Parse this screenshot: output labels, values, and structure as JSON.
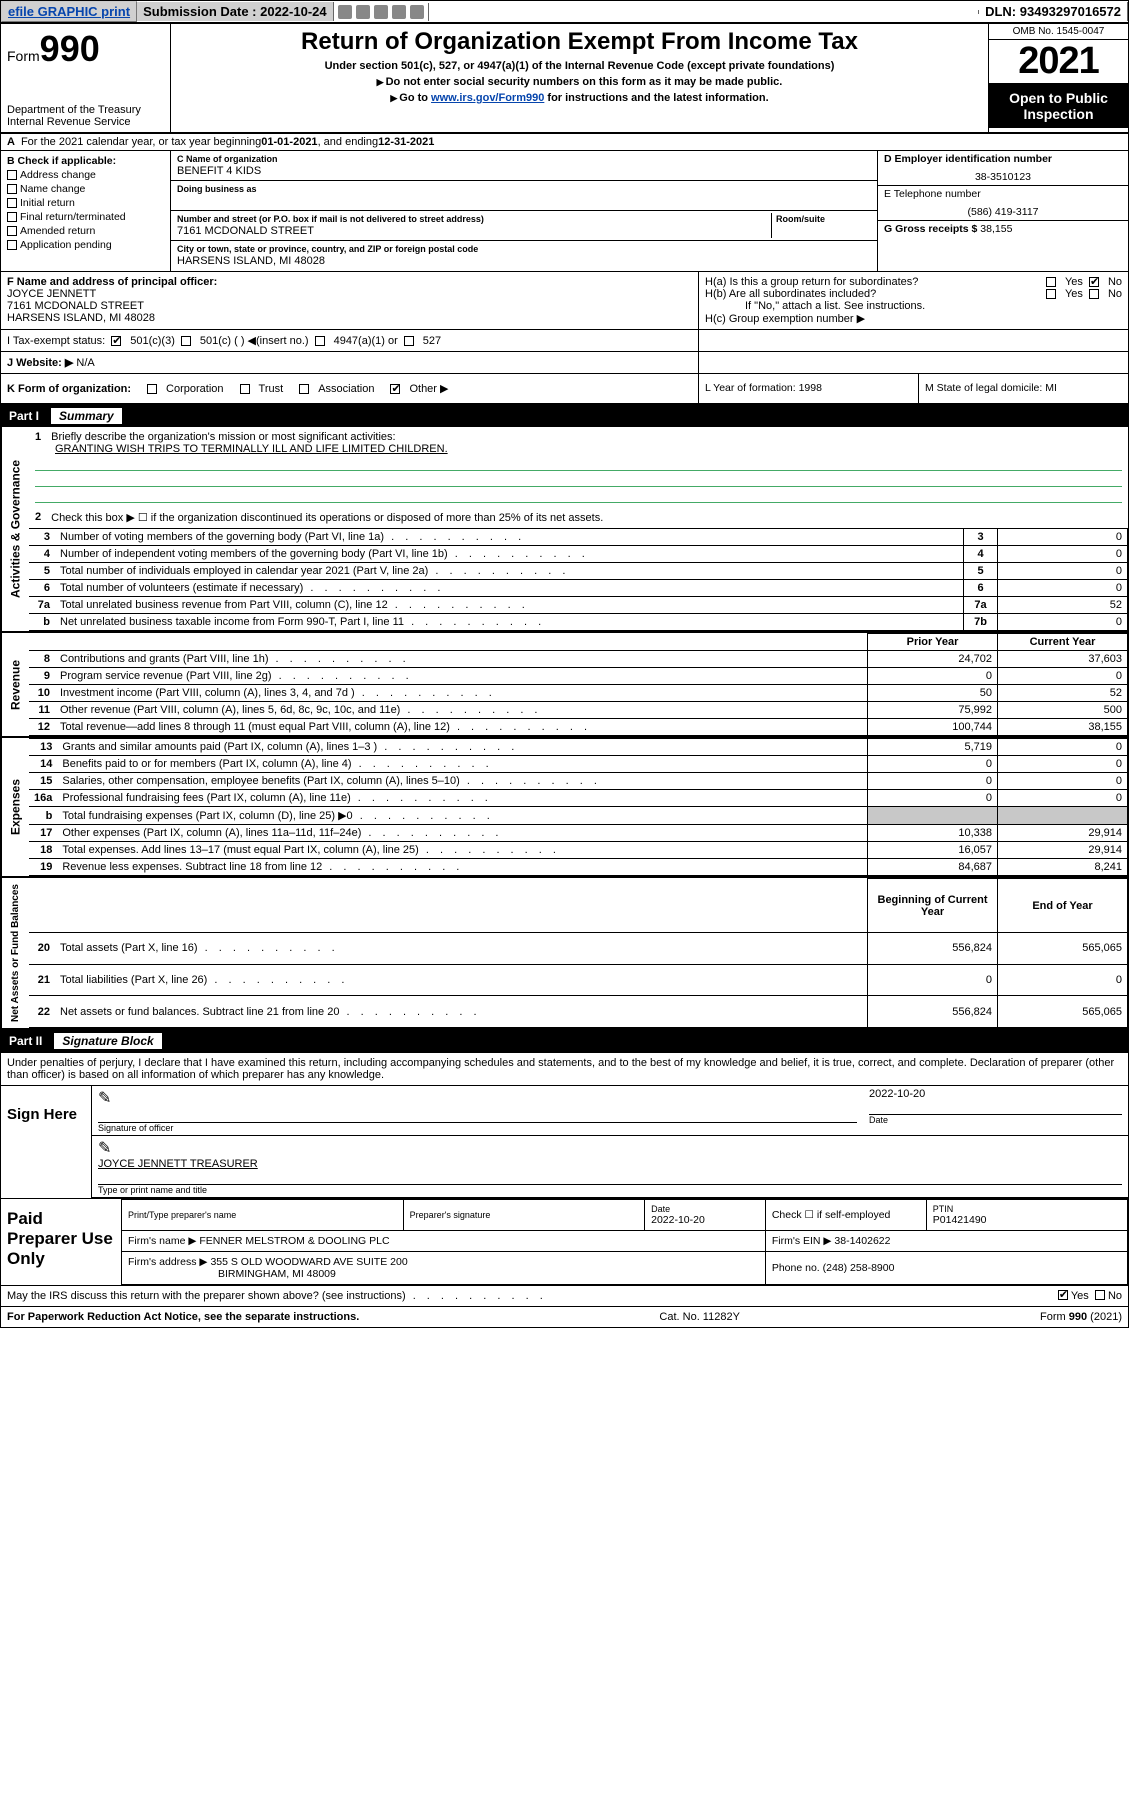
{
  "topbar": {
    "efile": "efile GRAPHIC print",
    "submission_label": "Submission Date : ",
    "submission_date": "2022-10-24",
    "dln_label": "DLN: ",
    "dln": "93493297016572"
  },
  "header": {
    "form_prefix": "Form",
    "form_no": "990",
    "dept": "Department of the Treasury\nInternal Revenue Service",
    "title": "Return of Organization Exempt From Income Tax",
    "subtitle": "Under section 501(c), 527, or 4947(a)(1) of the Internal Revenue Code (except private foundations)",
    "note1": "Do not enter social security numbers on this form as it may be made public.",
    "note2_pre": "Go to ",
    "note2_link": "www.irs.gov/Form990",
    "note2_post": " for instructions and the latest information.",
    "omb": "OMB No. 1545-0047",
    "year": "2021",
    "open": "Open to Public Inspection"
  },
  "row_a": {
    "prefix": "A",
    "text": "For the 2021 calendar year, or tax year beginning ",
    "begin": "01-01-2021",
    "mid": " , and ending ",
    "end": "12-31-2021"
  },
  "col_b": {
    "title": "B Check if applicable:",
    "opts": [
      "Address change",
      "Name change",
      "Initial return",
      "Final return/terminated",
      "Amended return",
      "Application pending"
    ]
  },
  "col_c": {
    "name_lbl": "C Name of organization",
    "name": "BENEFIT 4 KIDS",
    "dba_lbl": "Doing business as",
    "street_lbl": "Number and street (or P.O. box if mail is not delivered to street address)",
    "room_lbl": "Room/suite",
    "street": "7161 MCDONALD STREET",
    "city_lbl": "City or town, state or province, country, and ZIP or foreign postal code",
    "city": "HARSENS ISLAND, MI  48028"
  },
  "col_d": {
    "ein_lbl": "D Employer identification number",
    "ein": "38-3510123",
    "tel_lbl": "E Telephone number",
    "tel": "(586) 419-3117",
    "gross_lbl": "G Gross receipts $ ",
    "gross": "38,155"
  },
  "row_f": {
    "f_lbl": "F Name and address of principal officer:",
    "f_name": "JOYCE JENNETT",
    "f_addr1": "7161 MCDONALD STREET",
    "f_addr2": "HARSENS ISLAND, MI  48028",
    "ha": "H(a)  Is this a group return for subordinates?",
    "hb": "H(b)  Are all subordinates included?",
    "hb_note": "If \"No,\" attach a list. See instructions.",
    "hc": "H(c)  Group exemption number ▶",
    "yes": "Yes",
    "no": "No"
  },
  "row_i": {
    "lbl": "I    Tax-exempt status:",
    "o1": "501(c)(3)",
    "o2": "501(c) (  ) ◀(insert no.)",
    "o3": "4947(a)(1) or",
    "o4": "527"
  },
  "row_j": {
    "lbl": "J   Website: ▶",
    "val": "N/A"
  },
  "row_k": {
    "lbl": "K Form of organization:",
    "opts": [
      "Corporation",
      "Trust",
      "Association",
      "Other ▶"
    ],
    "l": "L Year of formation: 1998",
    "m": "M State of legal domicile: MI"
  },
  "part1": {
    "num": "Part I",
    "title": "Summary"
  },
  "mission": {
    "line1_lbl": "1",
    "line1": "Briefly describe the organization's mission or most significant activities:",
    "text": "GRANTING WISH TRIPS TO TERMINALLY ILL AND LIFE LIMITED CHILDREN.",
    "line2_lbl": "2",
    "line2": "Check this box ▶ ☐  if the organization discontinued its operations or disposed of more than 25% of its net assets."
  },
  "gov_rows": [
    {
      "n": "3",
      "d": "Number of voting members of the governing body (Part VI, line 1a)",
      "box": "3",
      "v": "0"
    },
    {
      "n": "4",
      "d": "Number of independent voting members of the governing body (Part VI, line 1b)",
      "box": "4",
      "v": "0"
    },
    {
      "n": "5",
      "d": "Total number of individuals employed in calendar year 2021 (Part V, line 2a)",
      "box": "5",
      "v": "0"
    },
    {
      "n": "6",
      "d": "Total number of volunteers (estimate if necessary)",
      "box": "6",
      "v": "0"
    },
    {
      "n": "7a",
      "d": "Total unrelated business revenue from Part VIII, column (C), line 12",
      "box": "7a",
      "v": "52"
    },
    {
      "n": "b",
      "d": "Net unrelated business taxable income from Form 990-T, Part I, line 11",
      "box": "7b",
      "v": "0"
    }
  ],
  "rev_hdr": {
    "prior": "Prior Year",
    "curr": "Current Year"
  },
  "rev_rows": [
    {
      "n": "8",
      "d": "Contributions and grants (Part VIII, line 1h)",
      "p": "24,702",
      "c": "37,603"
    },
    {
      "n": "9",
      "d": "Program service revenue (Part VIII, line 2g)",
      "p": "0",
      "c": "0"
    },
    {
      "n": "10",
      "d": "Investment income (Part VIII, column (A), lines 3, 4, and 7d )",
      "p": "50",
      "c": "52"
    },
    {
      "n": "11",
      "d": "Other revenue (Part VIII, column (A), lines 5, 6d, 8c, 9c, 10c, and 11e)",
      "p": "75,992",
      "c": "500"
    },
    {
      "n": "12",
      "d": "Total revenue—add lines 8 through 11 (must equal Part VIII, column (A), line 12)",
      "p": "100,744",
      "c": "38,155"
    }
  ],
  "exp_rows": [
    {
      "n": "13",
      "d": "Grants and similar amounts paid (Part IX, column (A), lines 1–3 )",
      "p": "5,719",
      "c": "0"
    },
    {
      "n": "14",
      "d": "Benefits paid to or for members (Part IX, column (A), line 4)",
      "p": "0",
      "c": "0"
    },
    {
      "n": "15",
      "d": "Salaries, other compensation, employee benefits (Part IX, column (A), lines 5–10)",
      "p": "0",
      "c": "0"
    },
    {
      "n": "16a",
      "d": "Professional fundraising fees (Part IX, column (A), line 11e)",
      "p": "0",
      "c": "0"
    },
    {
      "n": "b",
      "d": "Total fundraising expenses (Part IX, column (D), line 25) ▶0",
      "p": "",
      "c": "",
      "gray": true
    },
    {
      "n": "17",
      "d": "Other expenses (Part IX, column (A), lines 11a–11d, 11f–24e)",
      "p": "10,338",
      "c": "29,914"
    },
    {
      "n": "18",
      "d": "Total expenses. Add lines 13–17 (must equal Part IX, column (A), line 25)",
      "p": "16,057",
      "c": "29,914"
    },
    {
      "n": "19",
      "d": "Revenue less expenses. Subtract line 18 from line 12",
      "p": "84,687",
      "c": "8,241"
    }
  ],
  "net_hdr": {
    "beg": "Beginning of Current Year",
    "end": "End of Year"
  },
  "net_rows": [
    {
      "n": "20",
      "d": "Total assets (Part X, line 16)",
      "p": "556,824",
      "c": "565,065"
    },
    {
      "n": "21",
      "d": "Total liabilities (Part X, line 26)",
      "p": "0",
      "c": "0"
    },
    {
      "n": "22",
      "d": "Net assets or fund balances. Subtract line 21 from line 20",
      "p": "556,824",
      "c": "565,065"
    }
  ],
  "part2": {
    "num": "Part II",
    "title": "Signature Block"
  },
  "sig": {
    "decl": "Under penalties of perjury, I declare that I have examined this return, including accompanying schedules and statements, and to the best of my knowledge and belief, it is true, correct, and complete. Declaration of preparer (other than officer) is based on all information of which preparer has any knowledge.",
    "sign_here": "Sign Here",
    "sig_officer": "Signature of officer",
    "date": "2022-10-20",
    "date_lbl": "Date",
    "officer": "JOYCE JENNETT TREASURER",
    "type_lbl": "Type or print name and title"
  },
  "prep": {
    "title": "Paid Preparer Use Only",
    "h1": "Print/Type preparer's name",
    "h2": "Preparer's signature",
    "h3_lbl": "Date",
    "h3": "2022-10-20",
    "h4": "Check ☐ if self-employed",
    "h5_lbl": "PTIN",
    "h5": "P01421490",
    "firm_lbl": "Firm's name    ▶",
    "firm": "FENNER MELSTROM & DOOLING PLC",
    "ein_lbl": "Firm's EIN ▶",
    "ein": "38-1402622",
    "addr_lbl": "Firm's address ▶",
    "addr1": "355 S OLD WOODWARD AVE SUITE 200",
    "addr2": "BIRMINGHAM, MI  48009",
    "phone_lbl": "Phone no. ",
    "phone": "(248) 258-8900"
  },
  "discuss": {
    "q": "May the IRS discuss this return with the preparer shown above? (see instructions)",
    "yes": "Yes",
    "no": "No"
  },
  "footer": {
    "l": "For Paperwork Reduction Act Notice, see the separate instructions.",
    "c": "Cat. No. 11282Y",
    "r": "Form 990 (2021)"
  }
}
